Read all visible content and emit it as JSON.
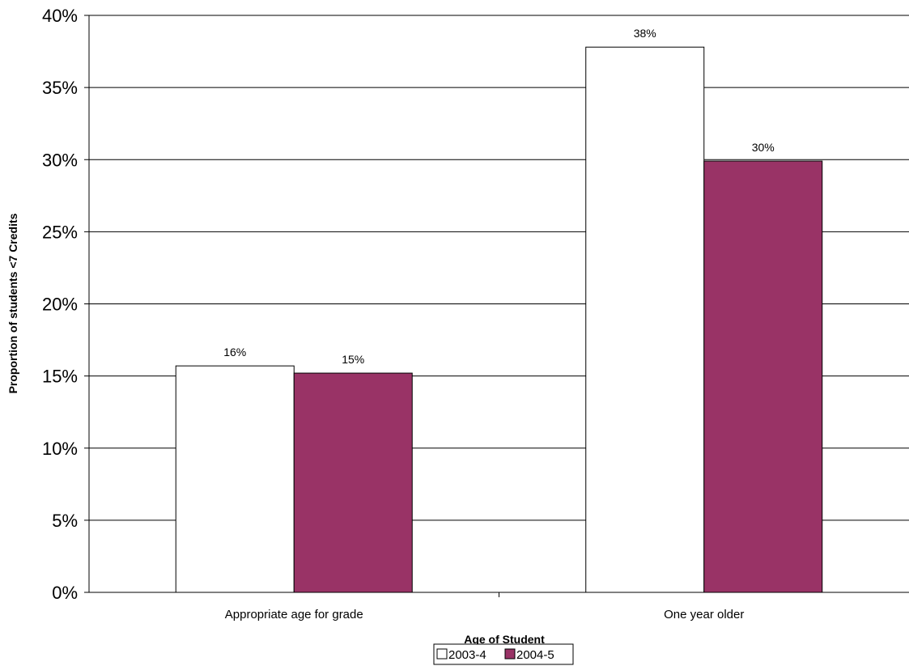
{
  "chart_data": {
    "type": "bar",
    "title": "",
    "xlabel": "Age of Student",
    "ylabel": "Proportion of students  <7 Credits",
    "categories": [
      "Appropriate age for grade",
      "One year older"
    ],
    "series": [
      {
        "name": "2003-4",
        "values": [
          0.157,
          0.378
        ],
        "labels": [
          "16%",
          "38%"
        ],
        "color": "#ffffff"
      },
      {
        "name": "2004-5",
        "values": [
          0.152,
          0.299
        ],
        "labels": [
          "15%",
          "30%"
        ],
        "color": "#993366"
      }
    ],
    "ylim": [
      0,
      0.4
    ],
    "yticks": [
      "0%",
      "5%",
      "10%",
      "15%",
      "20%",
      "25%",
      "30%",
      "35%",
      "40%"
    ],
    "grid": true,
    "legend_position": "bottom"
  }
}
